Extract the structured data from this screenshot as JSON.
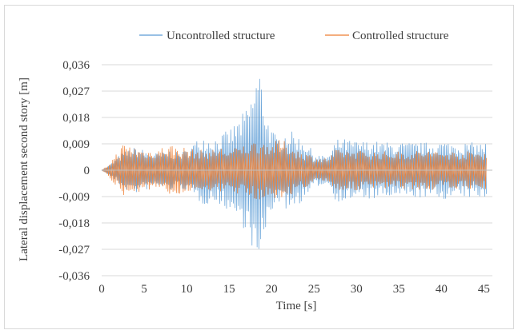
{
  "chart_data": {
    "type": "line",
    "xlabel": "Time [s]",
    "ylabel": "Lateral displacement second story [m]",
    "xlim": [
      0,
      46
    ],
    "ylim": [
      -0.036,
      0.036
    ],
    "x_ticks": [
      0,
      5,
      10,
      15,
      20,
      25,
      30,
      35,
      40,
      45
    ],
    "x_tick_labels": [
      "0",
      "5",
      "10",
      "15",
      "20",
      "25",
      "30",
      "35",
      "40",
      "45"
    ],
    "y_ticks": [
      0.036,
      0.027,
      0.018,
      0.009,
      0,
      -0.009,
      -0.018,
      -0.027,
      -0.036
    ],
    "y_tick_labels": [
      "0,036",
      "0,027",
      "0,018",
      "0,009",
      "0",
      "-0,009",
      "-0,018",
      "-0,027",
      "-0,036"
    ],
    "grid": "horizontal",
    "legend_position": "top",
    "series": [
      {
        "name": "Uncontrolled structure",
        "color": "#5b9bd5",
        "envelope": [
          [
            0,
            0.0
          ],
          [
            0.5,
            0.001
          ],
          [
            1,
            0.002
          ],
          [
            2,
            0.005
          ],
          [
            3,
            0.007
          ],
          [
            4,
            0.008
          ],
          [
            5,
            0.007
          ],
          [
            6,
            0.006
          ],
          [
            7,
            0.006
          ],
          [
            8,
            0.007
          ],
          [
            9,
            0.006
          ],
          [
            10,
            0.007
          ],
          [
            11,
            0.01
          ],
          [
            12,
            0.012
          ],
          [
            13,
            0.011
          ],
          [
            14,
            0.012
          ],
          [
            15,
            0.014
          ],
          [
            16,
            0.017
          ],
          [
            17,
            0.021
          ],
          [
            17.6,
            0.025
          ],
          [
            18.2,
            0.033
          ],
          [
            18.6,
            0.035
          ],
          [
            19,
            0.027
          ],
          [
            19.5,
            0.019
          ],
          [
            20,
            0.014
          ],
          [
            20.5,
            0.012
          ],
          [
            21,
            0.011
          ],
          [
            21.5,
            0.013
          ],
          [
            22,
            0.014
          ],
          [
            22.5,
            0.013
          ],
          [
            23,
            0.012
          ],
          [
            24,
            0.01
          ],
          [
            25,
            0.006
          ],
          [
            26,
            0.005
          ],
          [
            27,
            0.006
          ],
          [
            27.5,
            0.01
          ],
          [
            28,
            0.011
          ],
          [
            30,
            0.01
          ],
          [
            32,
            0.01
          ],
          [
            34,
            0.0095
          ],
          [
            36,
            0.0095
          ],
          [
            38,
            0.0095
          ],
          [
            40,
            0.01
          ],
          [
            42,
            0.0095
          ],
          [
            44,
            0.0095
          ],
          [
            45.3,
            0.0095
          ]
        ]
      },
      {
        "name": "Controlled structure",
        "color": "#ed7d31",
        "envelope": [
          [
            0,
            0.0
          ],
          [
            0.5,
            0.001
          ],
          [
            1,
            0.003
          ],
          [
            2,
            0.007
          ],
          [
            2.5,
            0.009
          ],
          [
            3,
            0.009
          ],
          [
            4,
            0.008
          ],
          [
            5,
            0.007
          ],
          [
            6,
            0.007
          ],
          [
            7,
            0.008
          ],
          [
            8,
            0.009
          ],
          [
            9,
            0.008
          ],
          [
            10,
            0.008
          ],
          [
            11,
            0.007
          ],
          [
            12,
            0.007
          ],
          [
            13,
            0.007
          ],
          [
            14,
            0.008
          ],
          [
            15,
            0.007
          ],
          [
            16,
            0.008
          ],
          [
            17,
            0.009
          ],
          [
            18,
            0.01
          ],
          [
            19,
            0.01
          ],
          [
            20,
            0.009
          ],
          [
            21,
            0.011
          ],
          [
            22,
            0.009
          ],
          [
            23,
            0.007
          ],
          [
            24,
            0.006
          ],
          [
            25,
            0.005
          ],
          [
            26,
            0.004
          ],
          [
            27,
            0.005
          ],
          [
            27.5,
            0.007
          ],
          [
            28,
            0.007
          ],
          [
            30,
            0.007
          ],
          [
            32,
            0.0065
          ],
          [
            34,
            0.0065
          ],
          [
            36,
            0.0065
          ],
          [
            38,
            0.007
          ],
          [
            40,
            0.0065
          ],
          [
            42,
            0.0065
          ],
          [
            44,
            0.0065
          ],
          [
            45.3,
            0.0065
          ]
        ]
      }
    ]
  }
}
